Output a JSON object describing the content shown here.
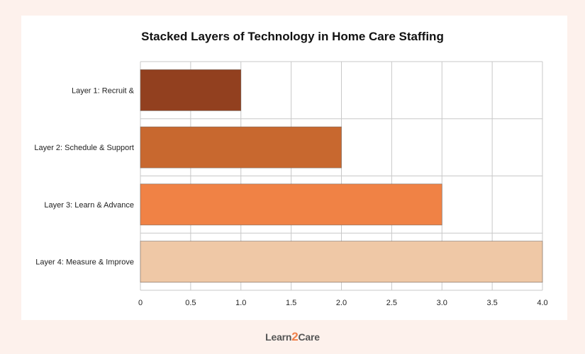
{
  "chart_data": {
    "type": "bar",
    "orientation": "horizontal",
    "title": "Stacked Layers of Technology in  Home Care Staffing",
    "categories": [
      "Layer 1: Recruit &",
      "Layer 2: Schedule & Support",
      "Layer 3: Learn & Advance",
      "Layer 4: Measure & Improve"
    ],
    "values": [
      1.0,
      2.0,
      3.0,
      4.0
    ],
    "colors": [
      "#92401f",
      "#c8682f",
      "#f08245",
      "#efc8a6"
    ],
    "xlim": [
      0,
      4.0
    ],
    "xticks": [
      "0",
      "0.5",
      "1.0",
      "1.5",
      "2.0",
      "2.5",
      "3.0",
      "3.5",
      "4.0"
    ],
    "grid": true,
    "xlabel": "",
    "ylabel": ""
  },
  "brand": {
    "part1": "Learn",
    "part2": "2",
    "part3": "Care"
  }
}
